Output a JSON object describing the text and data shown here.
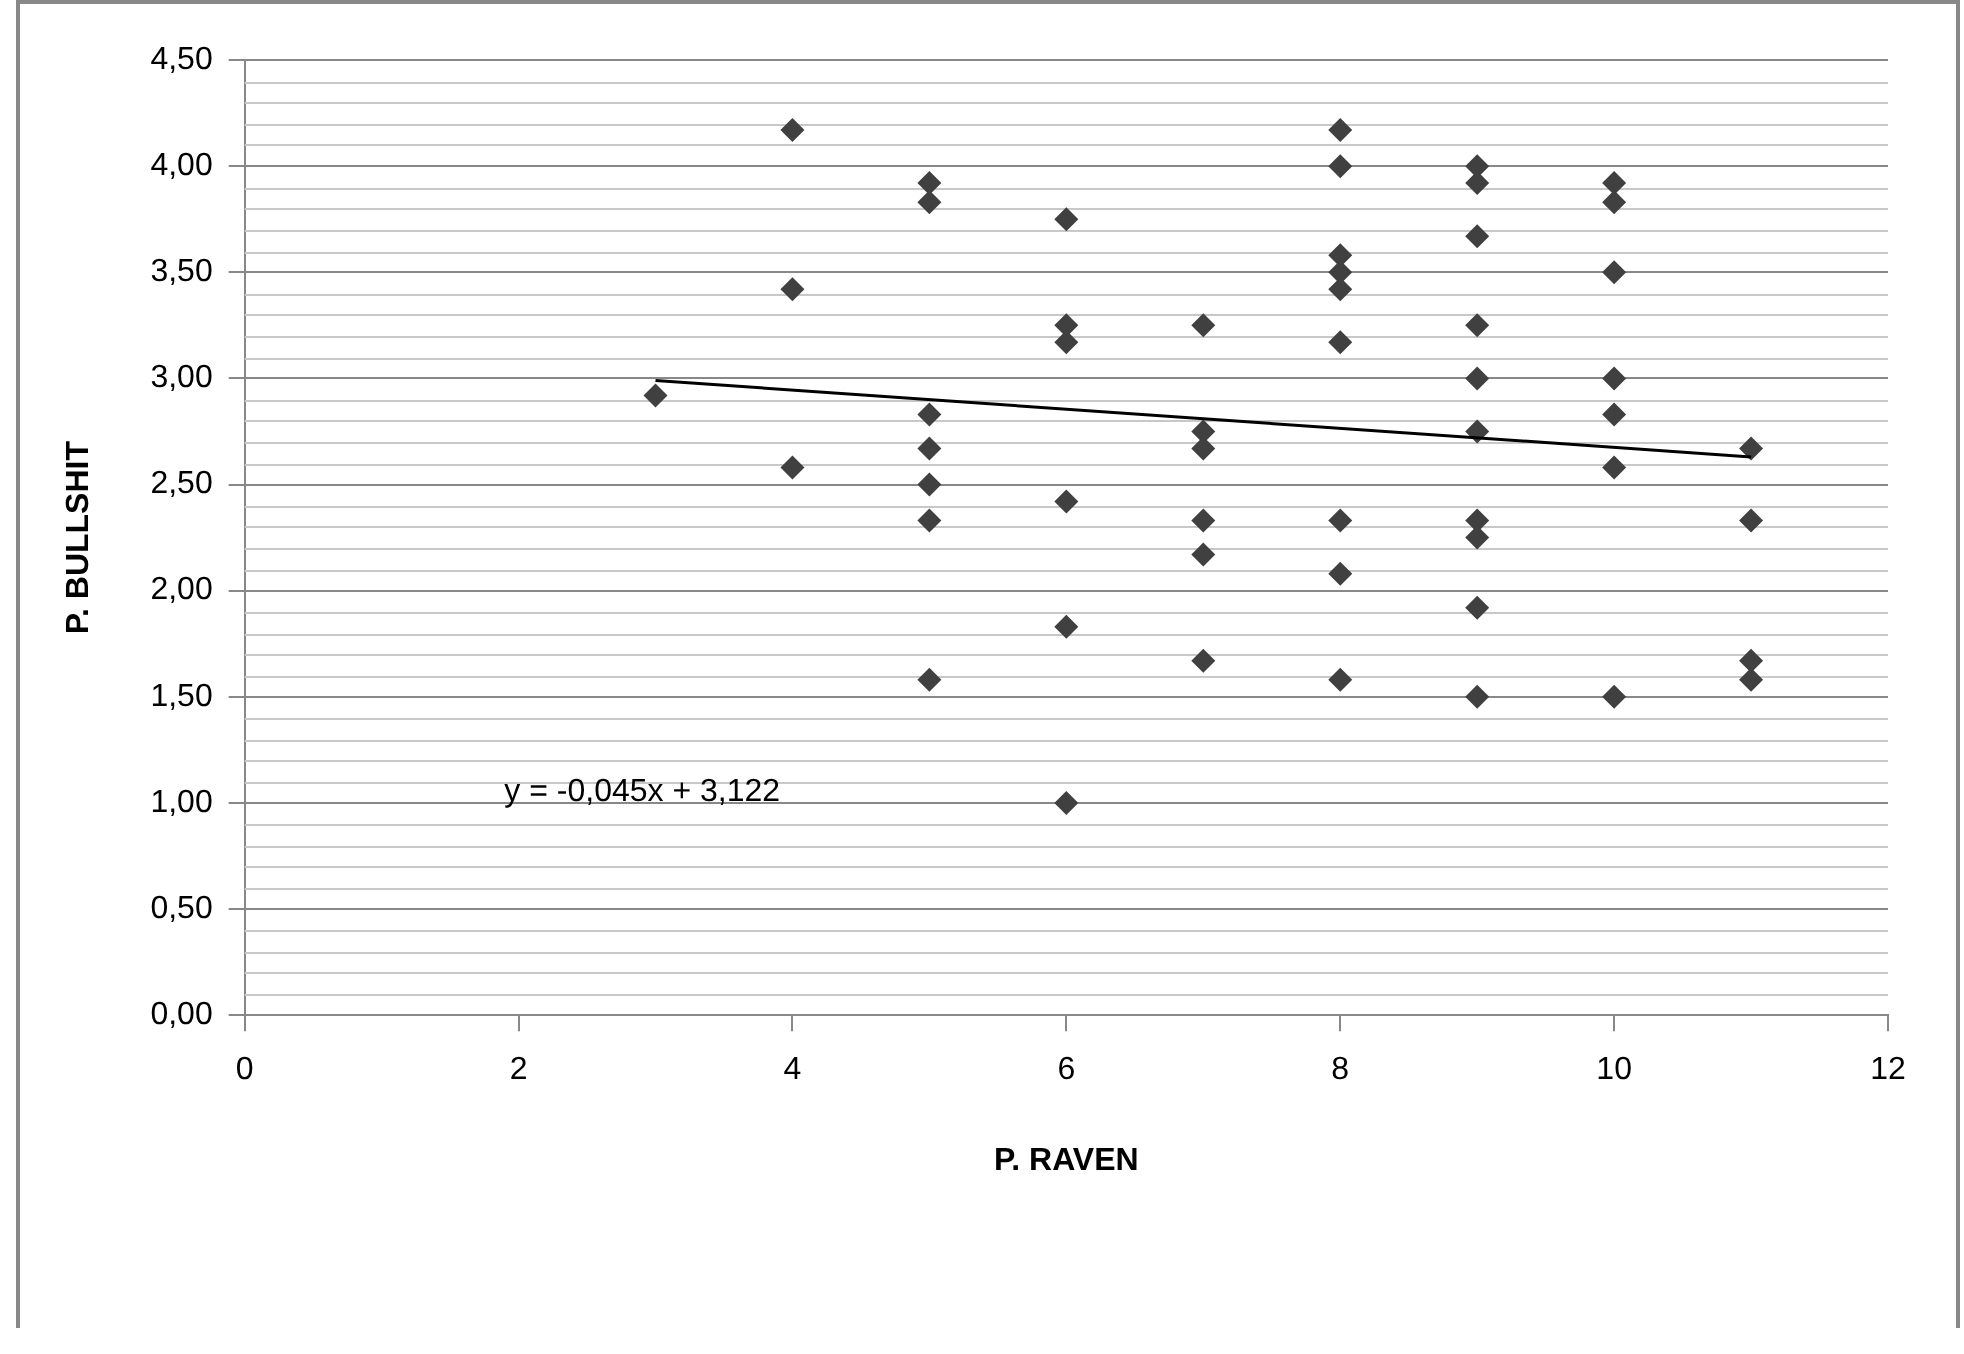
{
  "chart_data": {
    "type": "scatter",
    "xlabel": "P. RAVEN",
    "ylabel": "P. BULLSHIT",
    "series": [
      {
        "type": "scatter",
        "color": "#404040",
        "marker": "diamond",
        "x": [
          3,
          4,
          4,
          4,
          5,
          5,
          5,
          5,
          5,
          5,
          5,
          6,
          6,
          6,
          6,
          6,
          6,
          7,
          7,
          7,
          7,
          7,
          7,
          8,
          8,
          8,
          8,
          8,
          8,
          8,
          8,
          8,
          9,
          9,
          9,
          9,
          9,
          9,
          9,
          9,
          9,
          9,
          10,
          10,
          10,
          10,
          10,
          10,
          10,
          11,
          11,
          11,
          11
        ],
        "values": [
          2.92,
          4.17,
          3.42,
          2.58,
          3.92,
          3.83,
          2.83,
          2.67,
          2.5,
          2.33,
          1.58,
          3.75,
          3.25,
          3.17,
          2.42,
          1.83,
          1.0,
          3.25,
          2.75,
          2.67,
          2.33,
          2.17,
          1.67,
          4.17,
          4.0,
          3.58,
          3.5,
          3.42,
          3.17,
          2.33,
          2.08,
          1.58,
          4.0,
          3.92,
          3.67,
          3.25,
          3.0,
          2.75,
          2.33,
          2.25,
          1.92,
          1.5,
          3.92,
          3.83,
          3.5,
          3.0,
          2.83,
          2.58,
          1.5,
          2.67,
          2.33,
          1.67,
          1.58
        ]
      },
      {
        "type": "line",
        "color": "#000000",
        "marker": "none",
        "x": [
          3,
          11
        ],
        "values": [
          2.99,
          2.63
        ]
      }
    ],
    "annotations": [
      "y = -0,045x + 3,122"
    ],
    "xlim": [
      0,
      12
    ],
    "xticks": [
      0,
      2,
      4,
      6,
      8,
      10,
      12
    ],
    "ylim": [
      0,
      4.5
    ],
    "yticks": [
      {
        "value": 0,
        "label": "0,00"
      },
      {
        "value": 0.5,
        "label": "0,50"
      },
      {
        "value": 1,
        "label": "1,00"
      },
      {
        "value": 1.5,
        "label": "1,50"
      },
      {
        "value": 2,
        "label": "2,00"
      },
      {
        "value": 2.5,
        "label": "2,50"
      },
      {
        "value": 3,
        "label": "3,00"
      },
      {
        "value": 3.5,
        "label": "3,50"
      },
      {
        "value": 4,
        "label": "4,00"
      },
      {
        "value": 4.5,
        "label": "4,50"
      }
    ],
    "grid": "y",
    "legend": false
  }
}
